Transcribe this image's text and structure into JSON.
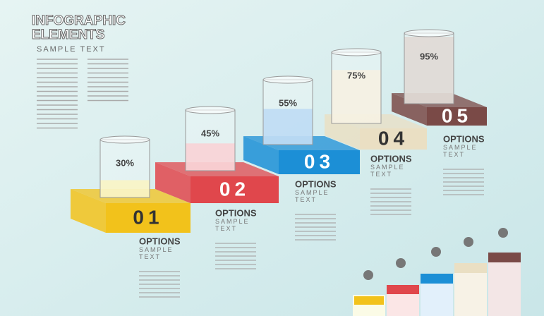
{
  "header": {
    "title_line1": "INFOGRAPHIC",
    "title_line2": "ELEMENTS",
    "subtitle": "SAMPLE TEXT"
  },
  "steps": [
    {
      "number": "01",
      "percent": {
        "value": 30,
        "label": "30%"
      },
      "heading": "OPTIONS",
      "sub": "SAMPLE TEXT",
      "color": "#f2c21b",
      "liquid": "#f7efb0"
    },
    {
      "number": "02",
      "percent": {
        "value": 45,
        "label": "45%"
      },
      "heading": "OPTIONS",
      "sub": "SAMPLE TEXT",
      "color": "#e0474c",
      "liquid": "#f6c3c8"
    },
    {
      "number": "03",
      "percent": {
        "value": 55,
        "label": "55%"
      },
      "heading": "OPTIONS",
      "sub": "SAMPLE TEXT",
      "color": "#1c8fd6",
      "liquid": "#a9cff0"
    },
    {
      "number": "04",
      "percent": {
        "value": 75,
        "label": "75%"
      },
      "heading": "OPTIONS",
      "sub": "SAMPLE TEXT",
      "color": "#eadfc3",
      "liquid": "#f3ecd8"
    },
    {
      "number": "05",
      "percent": {
        "value": 95,
        "label": "95%"
      },
      "heading": "OPTIONS",
      "sub": "SAMPLE TEXT",
      "color": "#7a4a47",
      "liquid": "#d6cdc6"
    }
  ]
}
